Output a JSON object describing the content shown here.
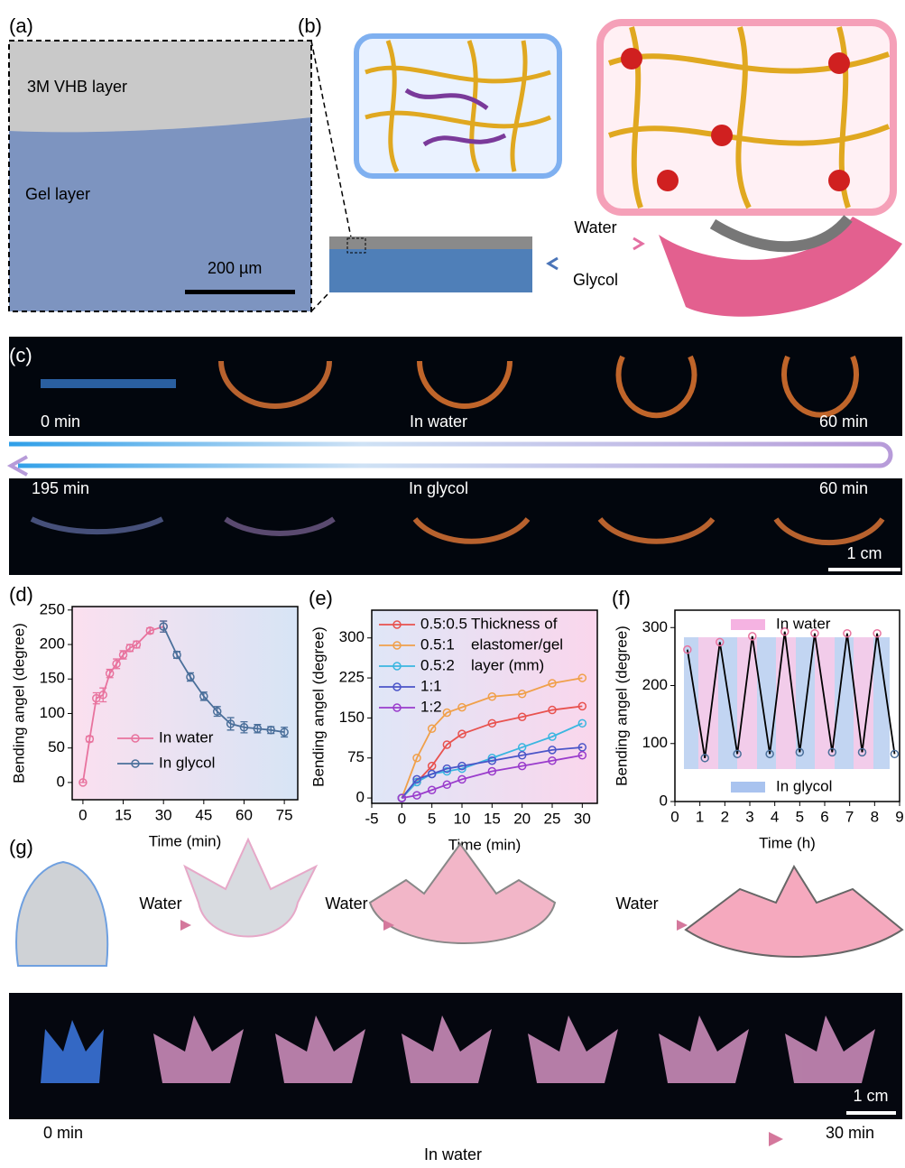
{
  "panel_a": {
    "label": "(a)",
    "top_layer": "3M VHB layer",
    "bottom_layer": "Gel layer",
    "scale_bar": "200 µm"
  },
  "panel_b": {
    "label": "(b)",
    "forward": "Water",
    "backward": "Glycol"
  },
  "panel_c": {
    "label": "(c)",
    "top_start": "0 min",
    "top_middle": "In water",
    "top_end": "60 min",
    "bottom_start": "195 min",
    "bottom_middle": "In glycol",
    "bottom_end": "60 min",
    "scale_bar": "1 cm"
  },
  "chart_data": [
    {
      "type": "line",
      "label": "(d)",
      "x_label": "Time (min)",
      "y_label": "Bending angel  (degree)",
      "xlim": [
        -4,
        80
      ],
      "xticks": [
        0,
        15,
        30,
        45,
        60,
        75
      ],
      "ylim": [
        -25,
        255
      ],
      "yticks": [
        0,
        50,
        100,
        150,
        200,
        250
      ],
      "legend": "lower center",
      "series": [
        {
          "name": "In water",
          "color": "#e8739e",
          "x": [
            0,
            2.5,
            5,
            7.5,
            10,
            12.5,
            15,
            17.5,
            20,
            25,
            30
          ],
          "values": [
            0,
            63,
            122,
            127,
            158,
            172,
            185,
            195,
            200,
            220,
            226
          ],
          "errors": [
            0,
            4,
            8,
            10,
            6,
            7,
            6,
            5,
            5,
            4,
            8
          ]
        },
        {
          "name": "In glycol",
          "color": "#4a6f9a",
          "x": [
            30,
            35,
            40,
            45,
            50,
            55,
            60,
            65,
            70,
            75
          ],
          "values": [
            226,
            185,
            153,
            125,
            103,
            85,
            80,
            78,
            76,
            73
          ],
          "errors": [
            8,
            5,
            6,
            6,
            7,
            9,
            8,
            6,
            5,
            7
          ]
        }
      ]
    },
    {
      "type": "line",
      "label": "(e)",
      "x_label": "Time (min)",
      "y_label": "Bending angel  (degree)",
      "xlim": [
        -5,
        32.5
      ],
      "xticks": [
        -5,
        0,
        5,
        10,
        15,
        20,
        25,
        30
      ],
      "ylim": [
        -10,
        352
      ],
      "yticks": [
        0,
        75,
        150,
        225,
        300
      ],
      "legend": "upper left",
      "annotation": [
        "Thickness of",
        "elastomer/gel",
        "layer (mm)"
      ],
      "series": [
        {
          "name": "0.5:0.5",
          "color": "#e8524f",
          "x": [
            0,
            2.5,
            5,
            7.5,
            10,
            15,
            20,
            25,
            30
          ],
          "values": [
            0,
            30,
            60,
            100,
            120,
            140,
            152,
            165,
            172
          ]
        },
        {
          "name": "0.5:1",
          "color": "#f0a04a",
          "x": [
            0,
            2.5,
            5,
            7.5,
            10,
            15,
            20,
            25,
            30
          ],
          "values": [
            0,
            75,
            130,
            160,
            170,
            190,
            195,
            215,
            225
          ]
        },
        {
          "name": "0.5:2",
          "color": "#3ab6e0",
          "x": [
            0,
            2.5,
            5,
            7.5,
            10,
            15,
            20,
            25,
            30
          ],
          "values": [
            0,
            30,
            45,
            50,
            55,
            75,
            95,
            115,
            140
          ]
        },
        {
          "name": "1:1",
          "color": "#4b55c8",
          "x": [
            0,
            2.5,
            5,
            7.5,
            10,
            15,
            20,
            25,
            30
          ],
          "values": [
            0,
            35,
            45,
            55,
            60,
            70,
            80,
            90,
            95
          ]
        },
        {
          "name": "1:2",
          "color": "#9a3ccc",
          "x": [
            0,
            2.5,
            5,
            7.5,
            10,
            15,
            20,
            25,
            30
          ],
          "values": [
            0,
            5,
            15,
            25,
            35,
            50,
            60,
            70,
            80
          ]
        }
      ]
    },
    {
      "type": "line",
      "label": "(f)",
      "x_label": "Time (h)",
      "y_label": "Bending angel  (degree)",
      "xlim": [
        0,
        9
      ],
      "xticks": [
        0,
        1,
        2,
        3,
        4,
        5,
        6,
        7,
        8,
        9
      ],
      "ylim": [
        0,
        330
      ],
      "yticks": [
        0,
        100,
        200,
        300
      ],
      "legend": [
        {
          "name": "In water",
          "color": "#f5b3e2"
        },
        {
          "name": "In glycol",
          "color": "#a9c3ef"
        }
      ],
      "series": [
        {
          "color": "#000000",
          "marker_colors": [
            "#e8739e",
            "#4a6f9a",
            "#e8739e",
            "#4a6f9a",
            "#e8739e",
            "#4a6f9a",
            "#e8739e",
            "#4a6f9a",
            "#e8739e",
            "#4a6f9a",
            "#e8739e",
            "#4a6f9a",
            "#e8739e",
            "#4a6f9a"
          ],
          "x": [
            0.5,
            1.2,
            1.8,
            2.5,
            3.1,
            3.8,
            4.4,
            5.0,
            5.6,
            6.3,
            6.9,
            7.5,
            8.1,
            8.8
          ],
          "values": [
            262,
            75,
            275,
            82,
            285,
            82,
            293,
            85,
            290,
            85,
            290,
            85,
            290,
            82
          ]
        }
      ]
    }
  ],
  "panel_g": {
    "label": "(g)",
    "arrows": [
      "Water",
      "Water",
      "Water"
    ],
    "scale_bar": "1 cm",
    "start": "0 min",
    "end": "30 min",
    "caption": "In water"
  }
}
